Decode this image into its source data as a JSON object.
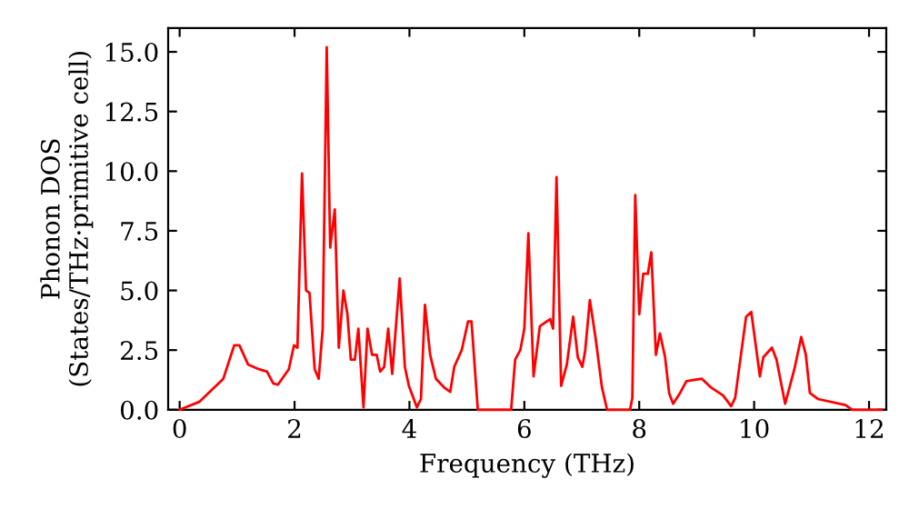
{
  "chart_data": {
    "type": "line",
    "xlabel": "Frequency (THz)",
    "ylabel": "Phonon DOS\n(States/THz·primitive cell)",
    "xlim": [
      -0.2,
      12.3
    ],
    "ylim": [
      0,
      16
    ],
    "xticks": [
      0,
      2,
      4,
      6,
      8,
      10,
      12
    ],
    "yticks": [
      {
        "value": 0,
        "label": "0.0"
      },
      {
        "value": 2.5,
        "label": "2.5"
      },
      {
        "value": 5,
        "label": "5.0"
      },
      {
        "value": 7.5,
        "label": "7.5"
      },
      {
        "value": 10,
        "label": "10.0"
      },
      {
        "value": 12.5,
        "label": "12.5"
      },
      {
        "value": 15,
        "label": "15.0"
      }
    ],
    "grid": false,
    "marker": "none",
    "line_style": "solid",
    "series": [
      {
        "color": "#ff0000",
        "x": [
          0,
          0.34,
          0.76,
          0.95,
          1.04,
          1.19,
          1.38,
          1.52,
          1.63,
          1.71,
          1.9,
          1.99,
          2.05,
          2.13,
          2.2,
          2.26,
          2.35,
          2.42,
          2.49,
          2.56,
          2.62,
          2.7,
          2.77,
          2.85,
          2.92,
          2.98,
          3.05,
          3.11,
          3.2,
          3.27,
          3.35,
          3.43,
          3.49,
          3.56,
          3.63,
          3.7,
          3.83,
          3.92,
          3.99,
          4.13,
          4.2,
          4.27,
          4.36,
          4.46,
          4.62,
          4.71,
          4.78,
          4.91,
          5.02,
          5.08,
          5.19,
          5.77,
          5.84,
          5.93,
          6.0,
          6.07,
          6.16,
          6.27,
          6.39,
          6.45,
          6.5,
          6.56,
          6.64,
          6.74,
          6.85,
          6.93,
          7.01,
          7.06,
          7.14,
          7.24,
          7.35,
          7.44,
          7.84,
          7.88,
          7.93,
          8.0,
          8.07,
          8.15,
          8.21,
          8.29,
          8.36,
          8.45,
          8.52,
          8.59,
          8.71,
          8.82,
          9.09,
          9.24,
          9.46,
          9.6,
          9.67,
          9.86,
          9.95,
          10.1,
          10.16,
          10.31,
          10.39,
          10.54,
          10.7,
          10.82,
          10.9,
          10.97,
          11.11,
          11.59,
          11.71,
          12.22
        ],
        "values": [
          0,
          0.33,
          1.3,
          2.7,
          2.7,
          1.9,
          1.7,
          1.6,
          1.1,
          1.05,
          1.7,
          2.7,
          2.6,
          9.9,
          5.0,
          4.9,
          1.7,
          1.3,
          3.4,
          15.2,
          6.8,
          8.4,
          2.6,
          5.0,
          4.0,
          2.1,
          2.1,
          3.4,
          0.1,
          3.4,
          2.3,
          2.3,
          1.6,
          1.8,
          3.4,
          1.5,
          5.5,
          1.8,
          1.0,
          0.1,
          0.45,
          4.4,
          2.3,
          1.3,
          0.9,
          0.75,
          1.8,
          2.5,
          3.7,
          3.7,
          0,
          0,
          2.1,
          2.5,
          3.4,
          7.4,
          1.4,
          3.5,
          3.7,
          3.8,
          3.4,
          9.75,
          1.0,
          1.9,
          3.9,
          2.2,
          1.8,
          2.5,
          4.6,
          3.0,
          0.95,
          0,
          0,
          0.5,
          9.0,
          4.0,
          5.7,
          5.7,
          6.6,
          2.3,
          3.2,
          2.2,
          0.7,
          0.25,
          0.7,
          1.2,
          1.3,
          0.95,
          0.6,
          0.15,
          0.5,
          3.9,
          4.1,
          1.4,
          2.2,
          2.6,
          2.1,
          0.25,
          1.7,
          3.05,
          2.3,
          0.7,
          0.45,
          0.2,
          0,
          0
        ]
      }
    ]
  }
}
